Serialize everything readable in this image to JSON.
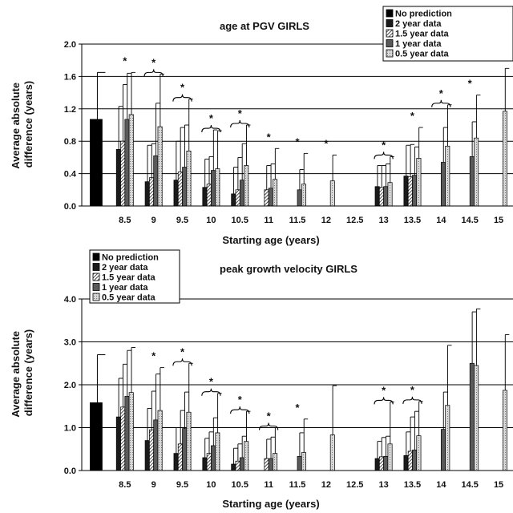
{
  "legend_labels": [
    "No prediction",
    "2 year data",
    "1.5 year data",
    "1 year data",
    "0.5 year data"
  ],
  "series_colors": [
    "#000000",
    "#1a1a1a",
    "#ffffff",
    "#555555",
    "#cfcfcf"
  ],
  "x_categories": [
    "",
    "8.5",
    "9",
    "9.5",
    "10",
    "10.5",
    "11",
    "11.5",
    "12",
    "12.5",
    "13",
    "13.5",
    "14",
    "14.5",
    "15"
  ],
  "chart_data": [
    {
      "type": "bar",
      "title": "age at PGV GIRLS",
      "xlabel": "Starting age (years)",
      "ylabel": "Average absolute difference (years)",
      "ylim": [
        0,
        2.0
      ],
      "yticks": [
        "0.0",
        "0.4",
        "0.8",
        "1.2",
        "1.6",
        "2.0"
      ],
      "legend_position": "top-right",
      "grid": "horizontal",
      "categories": [
        "",
        "8.5",
        "9",
        "9.5",
        "10",
        "10.5",
        "11",
        "11.5",
        "12",
        "12.5",
        "13",
        "13.5",
        "14",
        "14.5",
        "15"
      ],
      "series": [
        {
          "name": "No prediction",
          "values": [
            1.07,
            null,
            null,
            null,
            null,
            null,
            null,
            null,
            null,
            null,
            null,
            null,
            null,
            null,
            null
          ],
          "errors": [
            0.58,
            null,
            null,
            null,
            null,
            null,
            null,
            null,
            null,
            null,
            null,
            null,
            null,
            null,
            null
          ]
        },
        {
          "name": "2 year data",
          "values": [
            null,
            0.7,
            0.3,
            0.32,
            0.23,
            0.15,
            null,
            null,
            null,
            null,
            0.24,
            0.37,
            null,
            null,
            null
          ],
          "errors": [
            null,
            0.53,
            0.45,
            0.48,
            0.35,
            0.33,
            null,
            null,
            null,
            null,
            0.26,
            0.38,
            null,
            null,
            null
          ]
        },
        {
          "name": "1.5 year data",
          "values": [
            null,
            0.8,
            0.35,
            0.42,
            0.27,
            0.2,
            0.2,
            null,
            null,
            null,
            0.23,
            0.36,
            null,
            null,
            null
          ],
          "errors": [
            null,
            0.7,
            0.42,
            0.55,
            0.34,
            0.4,
            0.3,
            null,
            null,
            null,
            0.27,
            0.4,
            null,
            null,
            null
          ]
        },
        {
          "name": "1 year data",
          "values": [
            null,
            1.07,
            0.62,
            0.48,
            0.44,
            0.32,
            0.22,
            0.2,
            null,
            null,
            0.24,
            0.38,
            0.54,
            0.61,
            null
          ],
          "errors": [
            null,
            0.57,
            0.65,
            0.52,
            0.5,
            0.45,
            0.3,
            0.25,
            null,
            null,
            0.28,
            0.35,
            0.43,
            0.43,
            null
          ]
        },
        {
          "name": "0.5 year data",
          "values": [
            null,
            1.13,
            0.98,
            0.68,
            0.46,
            0.5,
            0.33,
            0.27,
            0.31,
            null,
            0.29,
            0.59,
            0.74,
            0.84,
            1.17
          ],
          "errors": [
            null,
            0.52,
            0.65,
            0.64,
            0.47,
            0.5,
            0.38,
            0.38,
            0.32,
            null,
            0.32,
            0.38,
            0.51,
            0.53,
            0.53
          ]
        }
      ],
      "significance_categories": [
        "8.5",
        "9",
        "9.5",
        "10",
        "10.5",
        "11",
        "11.5",
        "12",
        "13",
        "13.5",
        "14",
        "14.5"
      ],
      "bracket_categories": [
        "9",
        "9.5",
        "10",
        "10.5",
        "13",
        "14"
      ]
    },
    {
      "type": "bar",
      "title": "peak growth velocity GIRLS",
      "xlabel": "Starting age (years)",
      "ylabel": "Average absolute difference (years)",
      "ylim": [
        0,
        4.0
      ],
      "yticks": [
        "0.0",
        "1.0",
        "2.0",
        "3.0",
        "4.0"
      ],
      "legend_position": "top-left",
      "grid": "horizontal",
      "categories": [
        "",
        "8.5",
        "9",
        "9.5",
        "10",
        "10.5",
        "11",
        "11.5",
        "12",
        "12.5",
        "13",
        "13.5",
        "14",
        "14.5",
        "15"
      ],
      "series": [
        {
          "name": "No prediction",
          "values": [
            1.58,
            null,
            null,
            null,
            null,
            null,
            null,
            null,
            null,
            null,
            null,
            null,
            null,
            null,
            null
          ],
          "errors": [
            1.12,
            null,
            null,
            null,
            null,
            null,
            null,
            null,
            null,
            null,
            null,
            null,
            null,
            null,
            null
          ]
        },
        {
          "name": "2 year data",
          "values": [
            null,
            1.25,
            0.7,
            0.4,
            0.3,
            0.15,
            null,
            null,
            null,
            null,
            0.28,
            0.35,
            null,
            null,
            null
          ],
          "errors": [
            null,
            0.9,
            0.75,
            0.6,
            0.45,
            0.37,
            null,
            null,
            null,
            null,
            0.4,
            0.55,
            null,
            null,
            null
          ]
        },
        {
          "name": "1.5 year data",
          "values": [
            null,
            1.48,
            0.95,
            0.62,
            0.4,
            0.22,
            0.28,
            null,
            null,
            null,
            0.32,
            0.45,
            null,
            null,
            null
          ],
          "errors": [
            null,
            1.0,
            0.9,
            0.78,
            0.5,
            0.4,
            0.45,
            null,
            null,
            null,
            0.45,
            0.8,
            null,
            null,
            null
          ]
        },
        {
          "name": "1 year data",
          "values": [
            null,
            1.73,
            1.18,
            0.98,
            0.58,
            0.3,
            0.28,
            0.33,
            null,
            null,
            0.33,
            0.48,
            0.96,
            2.5,
            null
          ],
          "errors": [
            null,
            1.07,
            1.07,
            0.85,
            0.65,
            0.5,
            0.5,
            0.55,
            null,
            null,
            0.47,
            0.9,
            0.87,
            1.2,
            null
          ]
        },
        {
          "name": "0.5 year data",
          "values": [
            null,
            1.82,
            1.4,
            1.36,
            0.88,
            0.68,
            0.4,
            0.42,
            0.83,
            null,
            0.62,
            0.81,
            1.52,
            2.45,
            1.87
          ],
          "errors": [
            null,
            1.05,
            1.0,
            1.14,
            0.92,
            0.7,
            0.6,
            0.78,
            1.15,
            null,
            0.98,
            0.8,
            1.4,
            1.32,
            1.3
          ]
        }
      ],
      "significance_categories": [
        "9",
        "9.5",
        "10",
        "10.5",
        "11",
        "11.5",
        "13",
        "13.5"
      ],
      "bracket_categories": [
        "9.5",
        "10",
        "10.5",
        "11",
        "13",
        "13.5"
      ]
    }
  ]
}
